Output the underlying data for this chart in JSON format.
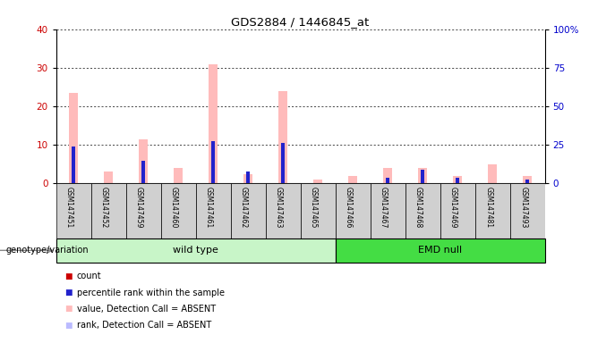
{
  "title": "GDS2884 / 1446845_at",
  "samples": [
    "GSM147451",
    "GSM147452",
    "GSM147459",
    "GSM147460",
    "GSM147461",
    "GSM147462",
    "GSM147463",
    "GSM147465",
    "GSM147466",
    "GSM147467",
    "GSM147468",
    "GSM147469",
    "GSM147481",
    "GSM147493"
  ],
  "count_values": [
    0,
    0,
    0,
    0,
    0,
    0,
    0,
    0,
    0,
    0,
    0,
    0,
    0,
    0
  ],
  "rank_values": [
    9.5,
    0,
    6,
    0,
    11,
    3,
    10.5,
    0,
    0,
    1.5,
    3.5,
    1.5,
    0,
    1
  ],
  "absent_value": [
    23.5,
    3,
    11.5,
    4,
    31,
    2.5,
    24,
    1,
    2,
    4,
    4,
    2,
    5,
    2
  ],
  "absent_rank": [
    0,
    0,
    0,
    0,
    0,
    0,
    0,
    0,
    0,
    0,
    0,
    0,
    0,
    0
  ],
  "groups": [
    {
      "label": "wild type",
      "start": 0,
      "end": 8,
      "color": "#c8f5c8"
    },
    {
      "label": "EMD null",
      "start": 8,
      "end": 14,
      "color": "#44dd44"
    }
  ],
  "ylim_left": [
    0,
    40
  ],
  "ylim_right": [
    0,
    100
  ],
  "yticks_left": [
    0,
    10,
    20,
    30,
    40
  ],
  "yticks_right": [
    0,
    25,
    50,
    75,
    100
  ],
  "ytick_right_labels": [
    "0",
    "25",
    "50",
    "75",
    "100%"
  ],
  "ylabel_left_color": "#cc0000",
  "ylabel_right_color": "#0000cc",
  "background_color": "#ffffff",
  "count_color": "#cc0000",
  "rank_color": "#2222cc",
  "absent_value_color": "#ffbbbb",
  "absent_rank_color": "#bbbbff",
  "grid_color": "#000000",
  "cell_bg": "#d0d0d0",
  "genotype_label": "genotype/variation",
  "legend_items": [
    {
      "label": "count",
      "color": "#cc0000"
    },
    {
      "label": "percentile rank within the sample",
      "color": "#2222cc"
    },
    {
      "label": "value, Detection Call = ABSENT",
      "color": "#ffbbbb"
    },
    {
      "label": "rank, Detection Call = ABSENT",
      "color": "#bbbbff"
    }
  ]
}
